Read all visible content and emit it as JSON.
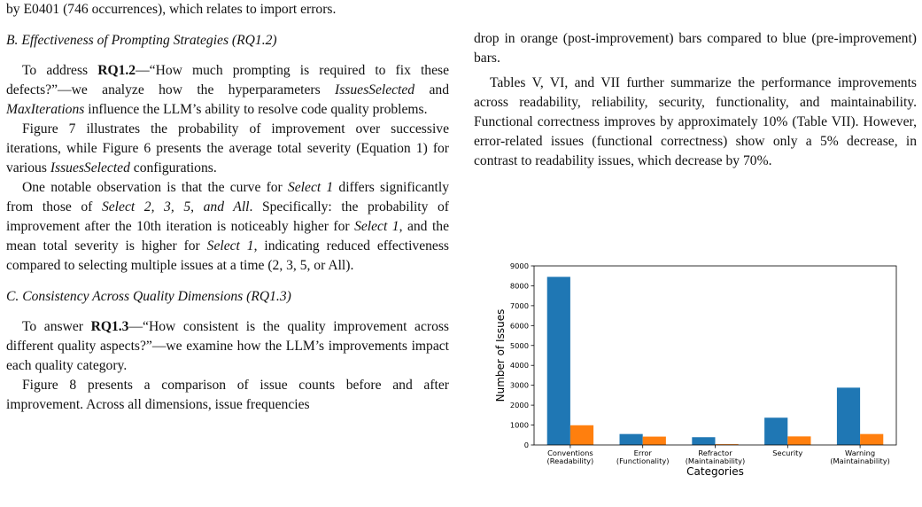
{
  "left_column": {
    "line0": "by E0401 (746 occurrences), which relates to import errors.",
    "section_b": {
      "heading": "B. Effectiveness of Prompting Strategies (RQ1.2)",
      "p1": {
        "pre": "To address ",
        "bold": "RQ1.2",
        "mid1": "—“How much prompting is required to fix these defects?”—we analyze how the hyperparameters ",
        "it1": "IssuesSelected",
        "mid2": " and ",
        "it2": "MaxIterations",
        "post": " influence the LLM’s ability to resolve code quality problems."
      },
      "p2": {
        "pre": "Figure 7 illustrates the probability of improvement over successive iterations, while Figure 6 presents the average total severity (Equation 1) for various ",
        "it": "IssuesSelected",
        "post": " configurations."
      },
      "p3": {
        "pre": "One notable observation is that the curve for ",
        "it1": "Select 1",
        "mid1": " differs significantly from those of ",
        "it2": "Select 2, 3, 5, and All",
        "mid2": ". Specifically: the probability of improvement after the 10th iteration is noticeably higher for ",
        "it3": "Select 1",
        "mid3": ", and the mean total severity is higher for ",
        "it4": "Select 1",
        "post": ", indicating reduced effectiveness compared to selecting multiple issues at a time (2, 3, 5, or All)."
      }
    },
    "section_c": {
      "heading": "C. Consistency Across Quality Dimensions (RQ1.3)",
      "p1": {
        "pre": "To answer ",
        "bold": "RQ1.3",
        "post": "—“How consistent is the quality improvement across different quality aspects?”—we examine how the LLM’s improvements impact each quality category."
      },
      "p2": "Figure 8 presents a comparison of issue counts before and after improvement. Across all dimensions, issue frequencies"
    }
  },
  "right_column": {
    "p1": "drop in orange (post-improvement) bars compared to blue (pre-improvement) bars.",
    "p2": "Tables V, VI, and VII further summarize the performance improvements across readability, reliability, security, functionality, and maintainability. Functional correctness improves by approximately 10% (Table VII). However, error-related issues (functional correctness) show only a 5% decrease, in contrast to readability issues, which decrease by 70%."
  },
  "chart_data": {
    "type": "bar",
    "categories": [
      [
        "Conventions",
        "(Readability)"
      ],
      [
        "Error",
        "(Functionality)"
      ],
      [
        "Refractor",
        "(Maintainability)"
      ],
      [
        "Security"
      ],
      [
        "Warning",
        "(Maintainability)"
      ]
    ],
    "series": [
      {
        "values": [
          8450,
          550,
          390,
          1370,
          2880
        ],
        "color": "#1f77b4"
      },
      {
        "values": [
          990,
          420,
          40,
          430,
          550
        ],
        "color": "#ff7f0e"
      }
    ],
    "xlabel": "Categories",
    "ylabel": "Number of Issues",
    "ylim": [
      0,
      9000
    ],
    "yticks": [
      0,
      1000,
      2000,
      3000,
      4000,
      5000,
      6000,
      7000,
      8000,
      9000
    ],
    "grid": false
  }
}
